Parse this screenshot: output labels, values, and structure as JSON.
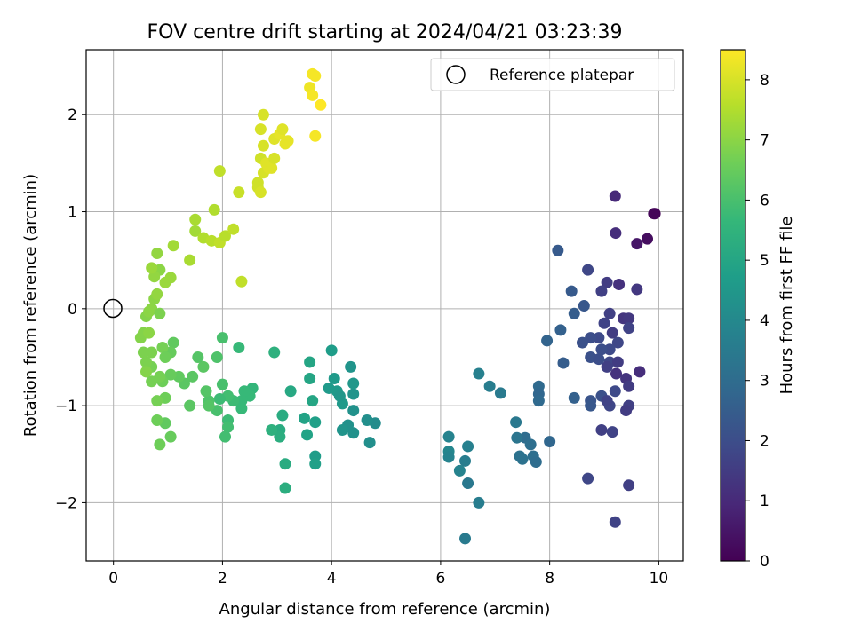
{
  "chart_data": {
    "type": "scatter",
    "title": "FOV centre drift starting at 2024/04/21 03:23:39",
    "xlabel": "Angular distance from reference (arcmin)",
    "ylabel": "Rotation from reference (arcmin)",
    "xlim": [
      -0.5,
      10.45
    ],
    "ylim": [
      -2.6,
      2.67
    ],
    "xticks": [
      0,
      2,
      4,
      6,
      8,
      10
    ],
    "xtick_labels": [
      "0",
      "2",
      "4",
      "6",
      "8",
      "10"
    ],
    "yticks": [
      -2,
      -1,
      0,
      1,
      2
    ],
    "ytick_labels": [
      "−2",
      "−1",
      "0",
      "1",
      "2"
    ],
    "grid": true,
    "legend": {
      "position": "top-right",
      "entries": [
        "Reference platepar"
      ]
    },
    "reference_point": {
      "x": 0,
      "y": 0,
      "label": "Reference platepar"
    },
    "colorbar": {
      "label": "Hours from first FF file",
      "colormap": "viridis",
      "range": [
        0,
        8.5
      ],
      "ticks": [
        0,
        1,
        2,
        3,
        4,
        5,
        6,
        7,
        8
      ],
      "tick_labels": [
        "0",
        "1",
        "2",
        "3",
        "4",
        "5",
        "6",
        "7",
        "8"
      ]
    },
    "points": [
      [
        9.93,
        0.98,
        0.05
      ],
      [
        9.91,
        0.98,
        0.1
      ],
      [
        9.79,
        0.72,
        0.3
      ],
      [
        9.6,
        0.67,
        0.5
      ],
      [
        9.2,
        1.16,
        1.0
      ],
      [
        9.21,
        0.78,
        1.1
      ],
      [
        9.27,
        0.25,
        1.2
      ],
      [
        9.6,
        0.2,
        1.4
      ],
      [
        9.05,
        0.27,
        1.5
      ],
      [
        8.95,
        0.18,
        1.6
      ],
      [
        8.7,
        0.4,
        1.8
      ],
      [
        9.35,
        -0.1,
        1.3
      ],
      [
        9.45,
        -0.1,
        1.4
      ],
      [
        9.0,
        -0.15,
        1.7
      ],
      [
        9.1,
        -0.05,
        1.6
      ],
      [
        9.15,
        -0.25,
        1.5
      ],
      [
        9.45,
        -0.2,
        1.7
      ],
      [
        8.9,
        -0.3,
        1.9
      ],
      [
        9.25,
        -0.35,
        1.8
      ],
      [
        8.75,
        -0.3,
        2.0
      ],
      [
        9.1,
        -0.42,
        1.9
      ],
      [
        8.95,
        -0.42,
        2.0
      ],
      [
        8.6,
        -0.35,
        2.1
      ],
      [
        9.1,
        -0.55,
        1.8
      ],
      [
        9.05,
        -0.6,
        1.6
      ],
      [
        9.25,
        -0.55,
        1.5
      ],
      [
        9.22,
        -0.67,
        1.2
      ],
      [
        9.4,
        -0.72,
        1.3
      ],
      [
        9.65,
        -0.65,
        1.1
      ],
      [
        9.45,
        -0.8,
        1.5
      ],
      [
        8.75,
        -0.5,
        2.1
      ],
      [
        8.9,
        -0.52,
        2.0
      ],
      [
        8.75,
        -0.95,
        2.2
      ],
      [
        8.75,
        -1.0,
        2.3
      ],
      [
        8.95,
        -0.9,
        2.1
      ],
      [
        9.1,
        -1.0,
        1.8
      ],
      [
        9.05,
        -0.95,
        1.7
      ],
      [
        9.45,
        -1.0,
        1.6
      ],
      [
        9.4,
        -1.05,
        1.5
      ],
      [
        8.95,
        -1.25,
        1.6
      ],
      [
        9.15,
        -1.27,
        1.7
      ],
      [
        9.2,
        -0.85,
        1.9
      ],
      [
        9.45,
        -1.82,
        1.6
      ],
      [
        8.7,
        -1.75,
        1.8
      ],
      [
        9.2,
        -2.2,
        1.7
      ],
      [
        8.63,
        0.03,
        2.3
      ],
      [
        8.4,
        0.18,
        2.4
      ],
      [
        8.45,
        -0.05,
        2.5
      ],
      [
        8.15,
        0.6,
        2.4
      ],
      [
        8.2,
        -0.22,
        2.6
      ],
      [
        7.95,
        -0.33,
        2.7
      ],
      [
        8.25,
        -0.56,
        2.5
      ],
      [
        8.45,
        -0.92,
        2.6
      ],
      [
        7.8,
        -0.8,
        2.9
      ],
      [
        7.8,
        -0.88,
        2.8
      ],
      [
        7.8,
        -0.95,
        2.9
      ],
      [
        7.55,
        -1.33,
        3.0
      ],
      [
        7.7,
        -1.52,
        3.1
      ],
      [
        7.65,
        -1.4,
        3.1
      ],
      [
        7.5,
        -1.55,
        3.2
      ],
      [
        7.45,
        -1.52,
        3.2
      ],
      [
        7.4,
        -1.33,
        3.3
      ],
      [
        7.38,
        -1.17,
        3.4
      ],
      [
        7.75,
        -1.58,
        3.0
      ],
      [
        8.0,
        -1.37,
        2.8
      ],
      [
        7.1,
        -0.87,
        3.5
      ],
      [
        6.9,
        -0.8,
        3.6
      ],
      [
        6.7,
        -0.67,
        3.7
      ],
      [
        6.7,
        -2.0,
        3.6
      ],
      [
        6.5,
        -1.8,
        3.4
      ],
      [
        6.45,
        -1.57,
        3.6
      ],
      [
        6.5,
        -1.42,
        3.7
      ],
      [
        6.35,
        -1.67,
        3.8
      ],
      [
        6.15,
        -1.32,
        3.8
      ],
      [
        6.15,
        -1.47,
        3.9
      ],
      [
        6.15,
        -1.53,
        3.8
      ],
      [
        6.45,
        -2.37,
        3.5
      ],
      [
        4.8,
        -1.18,
        4.1
      ],
      [
        4.7,
        -1.38,
        4.2
      ],
      [
        4.65,
        -1.15,
        4.2
      ],
      [
        4.4,
        -1.28,
        4.3
      ],
      [
        4.3,
        -1.2,
        4.3
      ],
      [
        4.2,
        -1.25,
        4.4
      ],
      [
        4.4,
        -1.05,
        4.3
      ],
      [
        4.4,
        -0.88,
        4.4
      ],
      [
        4.4,
        -0.77,
        4.5
      ],
      [
        4.35,
        -0.6,
        4.4
      ],
      [
        4.2,
        -0.98,
        4.6
      ],
      [
        4.1,
        -0.85,
        4.6
      ],
      [
        4.15,
        -0.9,
        4.5
      ],
      [
        4.05,
        -0.72,
        4.6
      ],
      [
        4.0,
        -0.43,
        4.7
      ],
      [
        3.95,
        -0.82,
        4.6
      ],
      [
        3.7,
        -1.17,
        4.8
      ],
      [
        3.7,
        -1.52,
        4.7
      ],
      [
        3.7,
        -1.6,
        4.8
      ],
      [
        3.55,
        -1.3,
        4.9
      ],
      [
        3.5,
        -1.13,
        4.9
      ],
      [
        3.6,
        -0.55,
        5.0
      ],
      [
        3.6,
        -0.72,
        5.0
      ],
      [
        3.65,
        -0.95,
        5.0
      ],
      [
        3.25,
        -0.85,
        5.1
      ],
      [
        3.15,
        -1.6,
        5.2
      ],
      [
        3.15,
        -1.85,
        5.3
      ],
      [
        3.1,
        -1.1,
        5.2
      ],
      [
        3.05,
        -1.25,
        5.2
      ],
      [
        3.05,
        -1.32,
        5.3
      ],
      [
        2.9,
        -1.25,
        5.4
      ],
      [
        2.95,
        -0.45,
        5.4
      ],
      [
        2.55,
        -0.82,
        5.6
      ],
      [
        2.5,
        -0.9,
        5.7
      ],
      [
        2.4,
        -0.85,
        5.7
      ],
      [
        2.35,
        -0.95,
        5.7
      ],
      [
        2.35,
        -1.03,
        5.7
      ],
      [
        2.3,
        -0.4,
        5.7
      ],
      [
        2.2,
        -0.95,
        5.8
      ],
      [
        2.1,
        -0.9,
        5.9
      ],
      [
        2.1,
        -1.15,
        5.8
      ],
      [
        2.1,
        -1.22,
        5.9
      ],
      [
        2.05,
        -1.32,
        5.9
      ],
      [
        2.0,
        -0.3,
        6.0
      ],
      [
        2.0,
        -0.78,
        6.0
      ],
      [
        1.95,
        -0.93,
        5.8
      ],
      [
        1.9,
        -1.05,
        6.0
      ],
      [
        1.9,
        -0.5,
        6.1
      ],
      [
        1.75,
        -0.95,
        6.1
      ],
      [
        1.75,
        -1.0,
        6.2
      ],
      [
        1.7,
        -0.85,
        6.2
      ],
      [
        1.65,
        -0.6,
        6.3
      ],
      [
        1.55,
        -0.5,
        6.2
      ],
      [
        1.45,
        -0.7,
        6.3
      ],
      [
        1.4,
        -1.0,
        6.3
      ],
      [
        1.3,
        -0.77,
        6.3
      ],
      [
        1.2,
        -0.7,
        6.4
      ],
      [
        1.1,
        -0.35,
        6.4
      ],
      [
        1.05,
        -0.45,
        6.5
      ],
      [
        1.05,
        -0.68,
        6.5
      ],
      [
        1.05,
        -1.32,
        6.5
      ],
      [
        0.95,
        -1.18,
        6.4
      ],
      [
        0.95,
        -0.92,
        6.6
      ],
      [
        0.9,
        -0.75,
        6.6
      ],
      [
        0.85,
        -0.7,
        6.7
      ],
      [
        0.85,
        -1.4,
        6.6
      ],
      [
        0.8,
        -1.15,
        6.6
      ],
      [
        0.8,
        -0.95,
        6.7
      ],
      [
        0.7,
        -0.75,
        6.7
      ],
      [
        0.7,
        -0.6,
        6.7
      ],
      [
        0.7,
        -0.45,
        6.8
      ],
      [
        0.6,
        -0.55,
        6.8
      ],
      [
        0.6,
        -0.65,
        6.9
      ],
      [
        0.55,
        -0.45,
        6.8
      ],
      [
        0.5,
        -0.3,
        6.9
      ],
      [
        0.55,
        -0.25,
        6.9
      ],
      [
        0.65,
        -0.25,
        7.0
      ],
      [
        0.6,
        -0.08,
        6.9
      ],
      [
        0.65,
        -0.03,
        7.0
      ],
      [
        0.7,
        0.0,
        7.0
      ],
      [
        0.75,
        0.1,
        7.0
      ],
      [
        0.8,
        0.15,
        7.1
      ],
      [
        0.85,
        -0.05,
        6.8
      ],
      [
        0.9,
        -0.4,
        6.7
      ],
      [
        0.95,
        -0.5,
        6.6
      ],
      [
        0.85,
        0.4,
        7.0
      ],
      [
        0.75,
        0.33,
        7.1
      ],
      [
        0.7,
        0.42,
        7.2
      ],
      [
        0.8,
        0.57,
        7.1
      ],
      [
        0.95,
        0.27,
        7.2
      ],
      [
        1.05,
        0.32,
        7.2
      ],
      [
        1.1,
        0.65,
        7.3
      ],
      [
        1.4,
        0.5,
        7.4
      ],
      [
        1.5,
        0.8,
        7.3
      ],
      [
        1.5,
        0.92,
        7.4
      ],
      [
        1.65,
        0.73,
        7.5
      ],
      [
        1.8,
        0.7,
        7.6
      ],
      [
        1.85,
        1.02,
        7.5
      ],
      [
        1.95,
        0.68,
        7.7
      ],
      [
        2.05,
        0.75,
        7.6
      ],
      [
        2.2,
        0.82,
        7.7
      ],
      [
        1.95,
        1.42,
        7.7
      ],
      [
        2.3,
        1.2,
        7.8
      ],
      [
        2.35,
        0.28,
        7.7
      ],
      [
        2.65,
        1.3,
        7.9
      ],
      [
        2.65,
        1.25,
        7.9
      ],
      [
        2.7,
        1.2,
        8.0
      ],
      [
        2.75,
        1.4,
        8.0
      ],
      [
        2.7,
        1.55,
        7.9
      ],
      [
        2.75,
        1.68,
        8.0
      ],
      [
        2.8,
        1.5,
        8.1
      ],
      [
        2.85,
        1.45,
        8.1
      ],
      [
        2.9,
        1.45,
        8.1
      ],
      [
        2.95,
        1.55,
        8.0
      ],
      [
        2.7,
        1.85,
        8.0
      ],
      [
        2.75,
        2.0,
        8.0
      ],
      [
        2.95,
        1.75,
        8.1
      ],
      [
        3.05,
        1.8,
        8.2
      ],
      [
        3.1,
        1.85,
        8.1
      ],
      [
        3.15,
        1.7,
        8.2
      ],
      [
        3.2,
        1.73,
        8.2
      ],
      [
        3.6,
        2.28,
        8.3
      ],
      [
        3.65,
        2.42,
        8.4
      ],
      [
        3.7,
        2.4,
        8.4
      ],
      [
        3.65,
        2.2,
        8.4
      ],
      [
        3.8,
        2.1,
        8.5
      ],
      [
        3.7,
        1.78,
        8.4
      ]
    ]
  }
}
